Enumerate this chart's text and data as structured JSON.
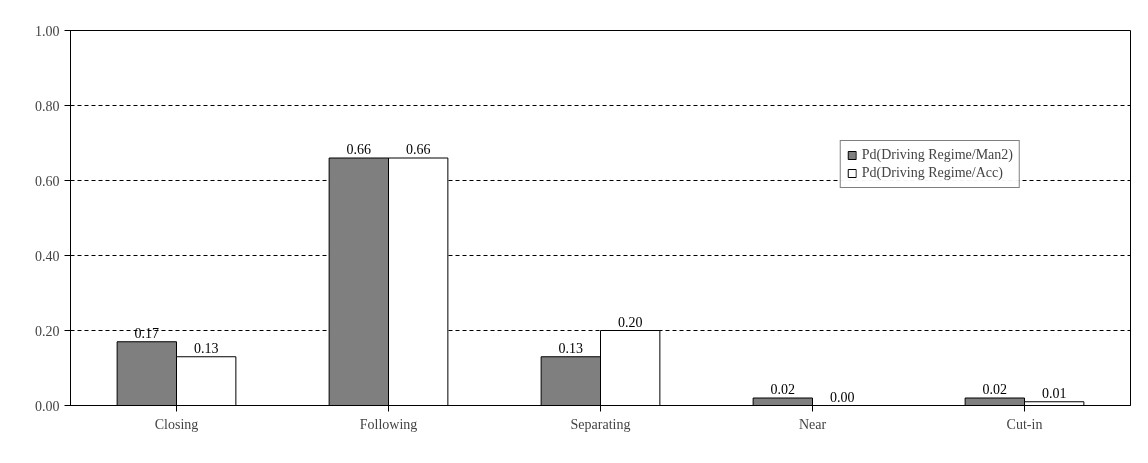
{
  "chart_data": {
    "type": "bar",
    "categories": [
      "Closing",
      "Following",
      "Separating",
      "Near",
      "Cut-in"
    ],
    "series": [
      {
        "name": "Pd(Driving Regime/Man2)",
        "color": "#7f7f7f",
        "values": [
          0.17,
          0.66,
          0.13,
          0.02,
          0.02
        ],
        "value_labels": [
          "0.17",
          "0.66",
          "0.13",
          "0.02",
          "0.02"
        ]
      },
      {
        "name": "Pd(Driving Regime/Acc)",
        "color": "#ffffff",
        "values": [
          0.13,
          0.66,
          0.2,
          0.0,
          0.01
        ],
        "value_labels": [
          "0.13",
          "0.66",
          "0.20",
          "0.00",
          "0.01"
        ]
      }
    ],
    "ylim": [
      0,
      1
    ],
    "yticks": [
      {
        "value": 0,
        "label": "0.00"
      },
      {
        "value": 0.2,
        "label": "0.20"
      },
      {
        "value": 0.4,
        "label": "0.40"
      },
      {
        "value": 0.6,
        "label": "0.60"
      },
      {
        "value": 0.8,
        "label": "0.80"
      },
      {
        "value": 1,
        "label": "1.00"
      }
    ],
    "grid": "y",
    "legend": "top right"
  }
}
